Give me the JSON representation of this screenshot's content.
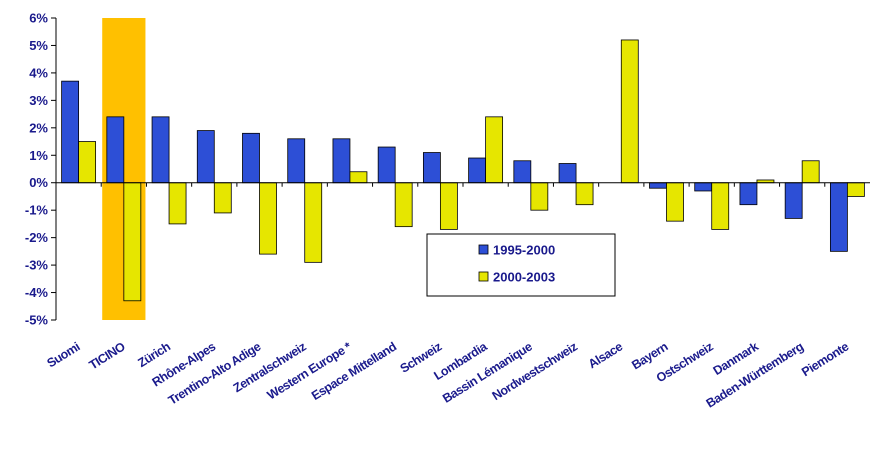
{
  "chart_data": {
    "type": "bar",
    "categories": [
      "Suomi",
      "TICINO",
      "Zürich",
      "Rhône-Alpes",
      "Trentino-Alto Adige",
      "Zentralschweiz",
      "Western Europe *",
      "Espace Mittelland",
      "Schweiz",
      "Lombardia",
      "Bassin Lémanique",
      "Nordwestschweiz",
      "Alsace",
      "Bayern",
      "Ostschweiz",
      "Danmark",
      "Baden-Württemberg",
      "Piemonte"
    ],
    "series": [
      {
        "name": "1995-2000",
        "color": "#2d4fd6",
        "values": [
          3.7,
          2.4,
          2.4,
          1.9,
          1.8,
          1.6,
          1.6,
          1.3,
          1.1,
          0.9,
          0.8,
          0.7,
          null,
          -0.2,
          -0.3,
          -0.8,
          -1.3,
          -2.5
        ]
      },
      {
        "name": "2000-2003",
        "color": "#e6e600",
        "values": [
          1.5,
          -4.3,
          -1.5,
          -1.1,
          -2.6,
          -2.9,
          0.4,
          -1.6,
          -1.7,
          2.4,
          -1.0,
          -0.8,
          5.2,
          -1.4,
          -1.7,
          0.1,
          0.8,
          -0.5
        ]
      }
    ],
    "highlight_category": "TICINO",
    "highlight_color": "#ffc000",
    "yticks": [
      "6%",
      "5%",
      "4%",
      "3%",
      "2%",
      "1%",
      "0%",
      "-1%",
      "-2%",
      "-3%",
      "-4%",
      "-5%"
    ],
    "ylim": [
      -5,
      6
    ],
    "legend_position": "center-right"
  }
}
